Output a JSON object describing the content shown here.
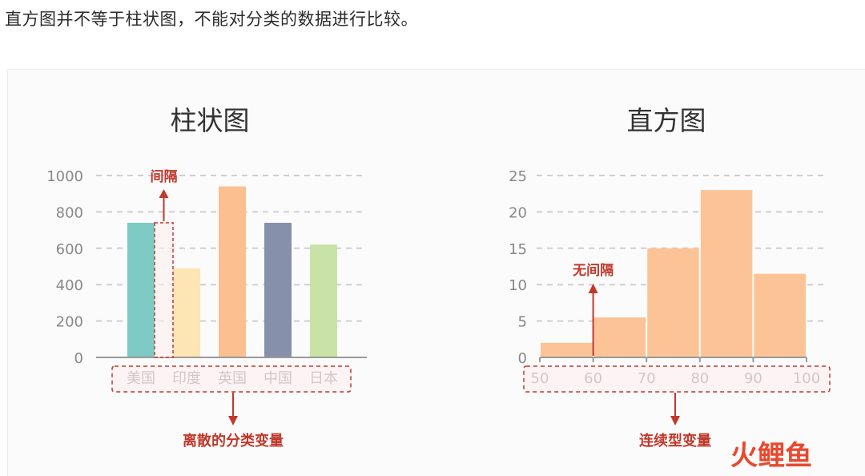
{
  "intro_text": "直方图并不等于柱状图，不能对分类的数据进行比较。",
  "watermark_text": "火鲤鱼",
  "chart_data": [
    {
      "type": "bar",
      "title": "柱状图",
      "categories": [
        "美国",
        "印度",
        "英国",
        "中国",
        "日本"
      ],
      "values": [
        740,
        490,
        940,
        740,
        620
      ],
      "colors": [
        "#7ecac4",
        "#fde5b4",
        "#fbbf90",
        "#8790aa",
        "#c9e2a6"
      ],
      "ylim": [
        0,
        1000
      ],
      "yticks": [
        0,
        200,
        400,
        600,
        800,
        1000
      ],
      "grid": true,
      "annotations": {
        "gap_label": "间隔",
        "category_label": "离散的分类变量"
      },
      "annotation_color": "#c0392b"
    },
    {
      "type": "histogram",
      "title": "直方图",
      "bins": [
        {
          "from": 50,
          "to": 60,
          "value": 2
        },
        {
          "from": 60,
          "to": 70,
          "value": 5.5
        },
        {
          "from": 70,
          "to": 80,
          "value": 15
        },
        {
          "from": 80,
          "to": 90,
          "value": 23
        },
        {
          "from": 90,
          "to": 100,
          "value": 11.5
        }
      ],
      "xticks": [
        50,
        60,
        70,
        80,
        90,
        100
      ],
      "ylim": [
        0,
        25
      ],
      "yticks": [
        0,
        5,
        10,
        15,
        20,
        25
      ],
      "color": "#fcc496",
      "grid": true,
      "annotations": {
        "no_gap_label": "无间隔",
        "variable_label": "连续型变量"
      },
      "annotation_color": "#c0392b"
    }
  ]
}
